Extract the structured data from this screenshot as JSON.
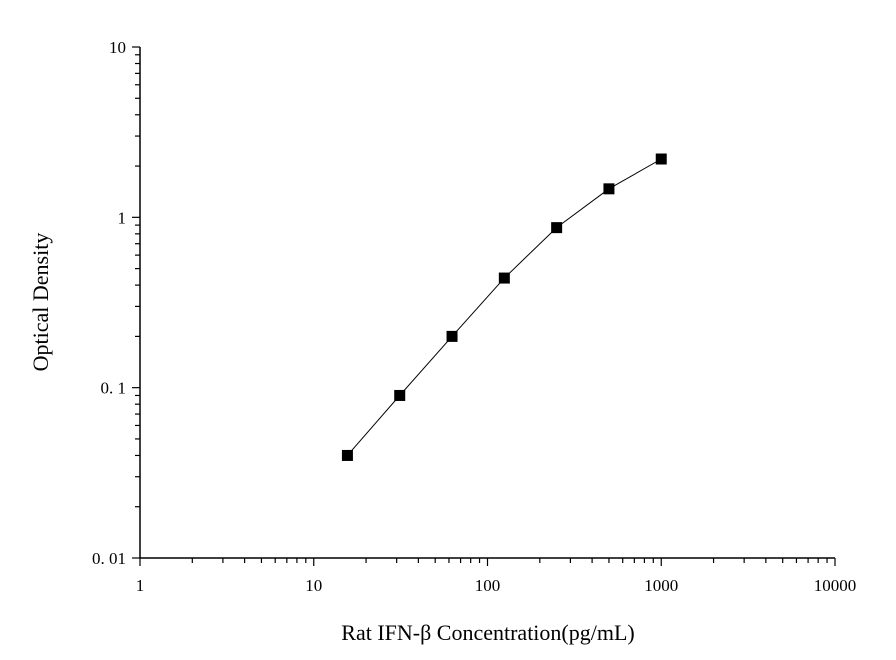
{
  "chart_data": {
    "type": "line",
    "title": "",
    "xlabel": "Rat IFN-β Concentration(pg/mL)",
    "ylabel": "Optical Density",
    "x_scale": "log",
    "y_scale": "log",
    "xlim": [
      1,
      10000
    ],
    "ylim": [
      0.01,
      10
    ],
    "x_ticks": [
      1,
      10,
      100,
      1000,
      10000
    ],
    "x_tick_labels": [
      "1",
      "10",
      "100",
      "1000",
      "10000"
    ],
    "y_ticks": [
      0.01,
      0.1,
      1,
      10
    ],
    "y_tick_labels": [
      "0. 01",
      "0. 1",
      "1",
      "10"
    ],
    "grid": false,
    "marker": "square",
    "series": [
      {
        "x": [
          15.625,
          31.25,
          62.5,
          125,
          250,
          500,
          1000
        ],
        "y": [
          0.04,
          0.09,
          0.2,
          0.44,
          0.87,
          1.47,
          2.2
        ]
      }
    ],
    "colors": {
      "line": "#000000",
      "marker": "#000000",
      "axis": "#000000"
    }
  }
}
